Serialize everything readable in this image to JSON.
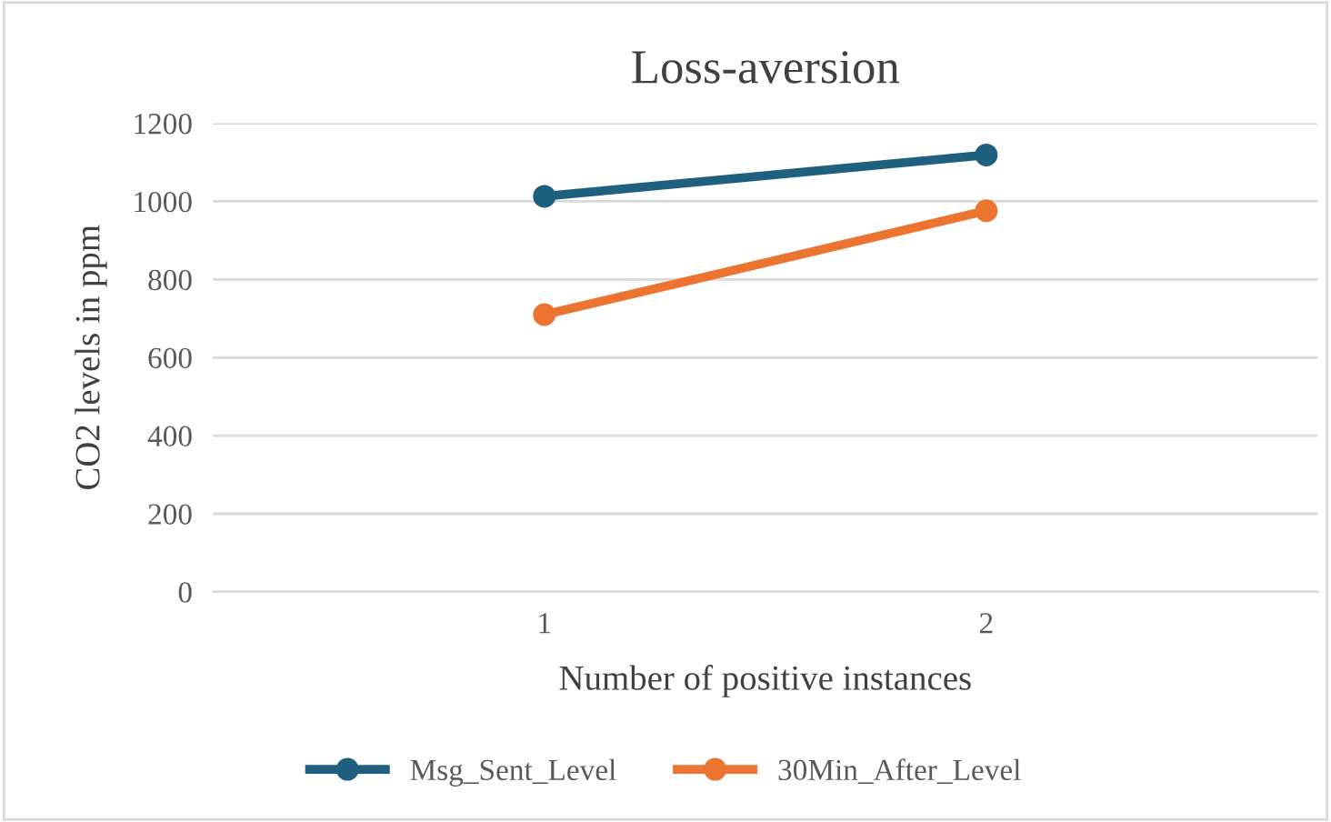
{
  "chart_data": {
    "type": "line",
    "title": "Loss-aversion",
    "xlabel": "Number of positive instances",
    "ylabel": "CO2 levels in ppm",
    "categories": [
      "1",
      "2"
    ],
    "series": [
      {
        "name": "Msg_Sent_Level",
        "color": "#1f5f7f",
        "values": [
          1013,
          1119
        ]
      },
      {
        "name": "30Min_After_Level",
        "color": "#ed7331",
        "values": [
          710,
          976
        ]
      }
    ],
    "ylim": [
      0,
      1200
    ],
    "yticks": [
      0,
      200,
      400,
      600,
      800,
      1000,
      1200
    ],
    "grid": "y",
    "legend": "bottom",
    "marker": "circle",
    "line_style": "solid"
  }
}
